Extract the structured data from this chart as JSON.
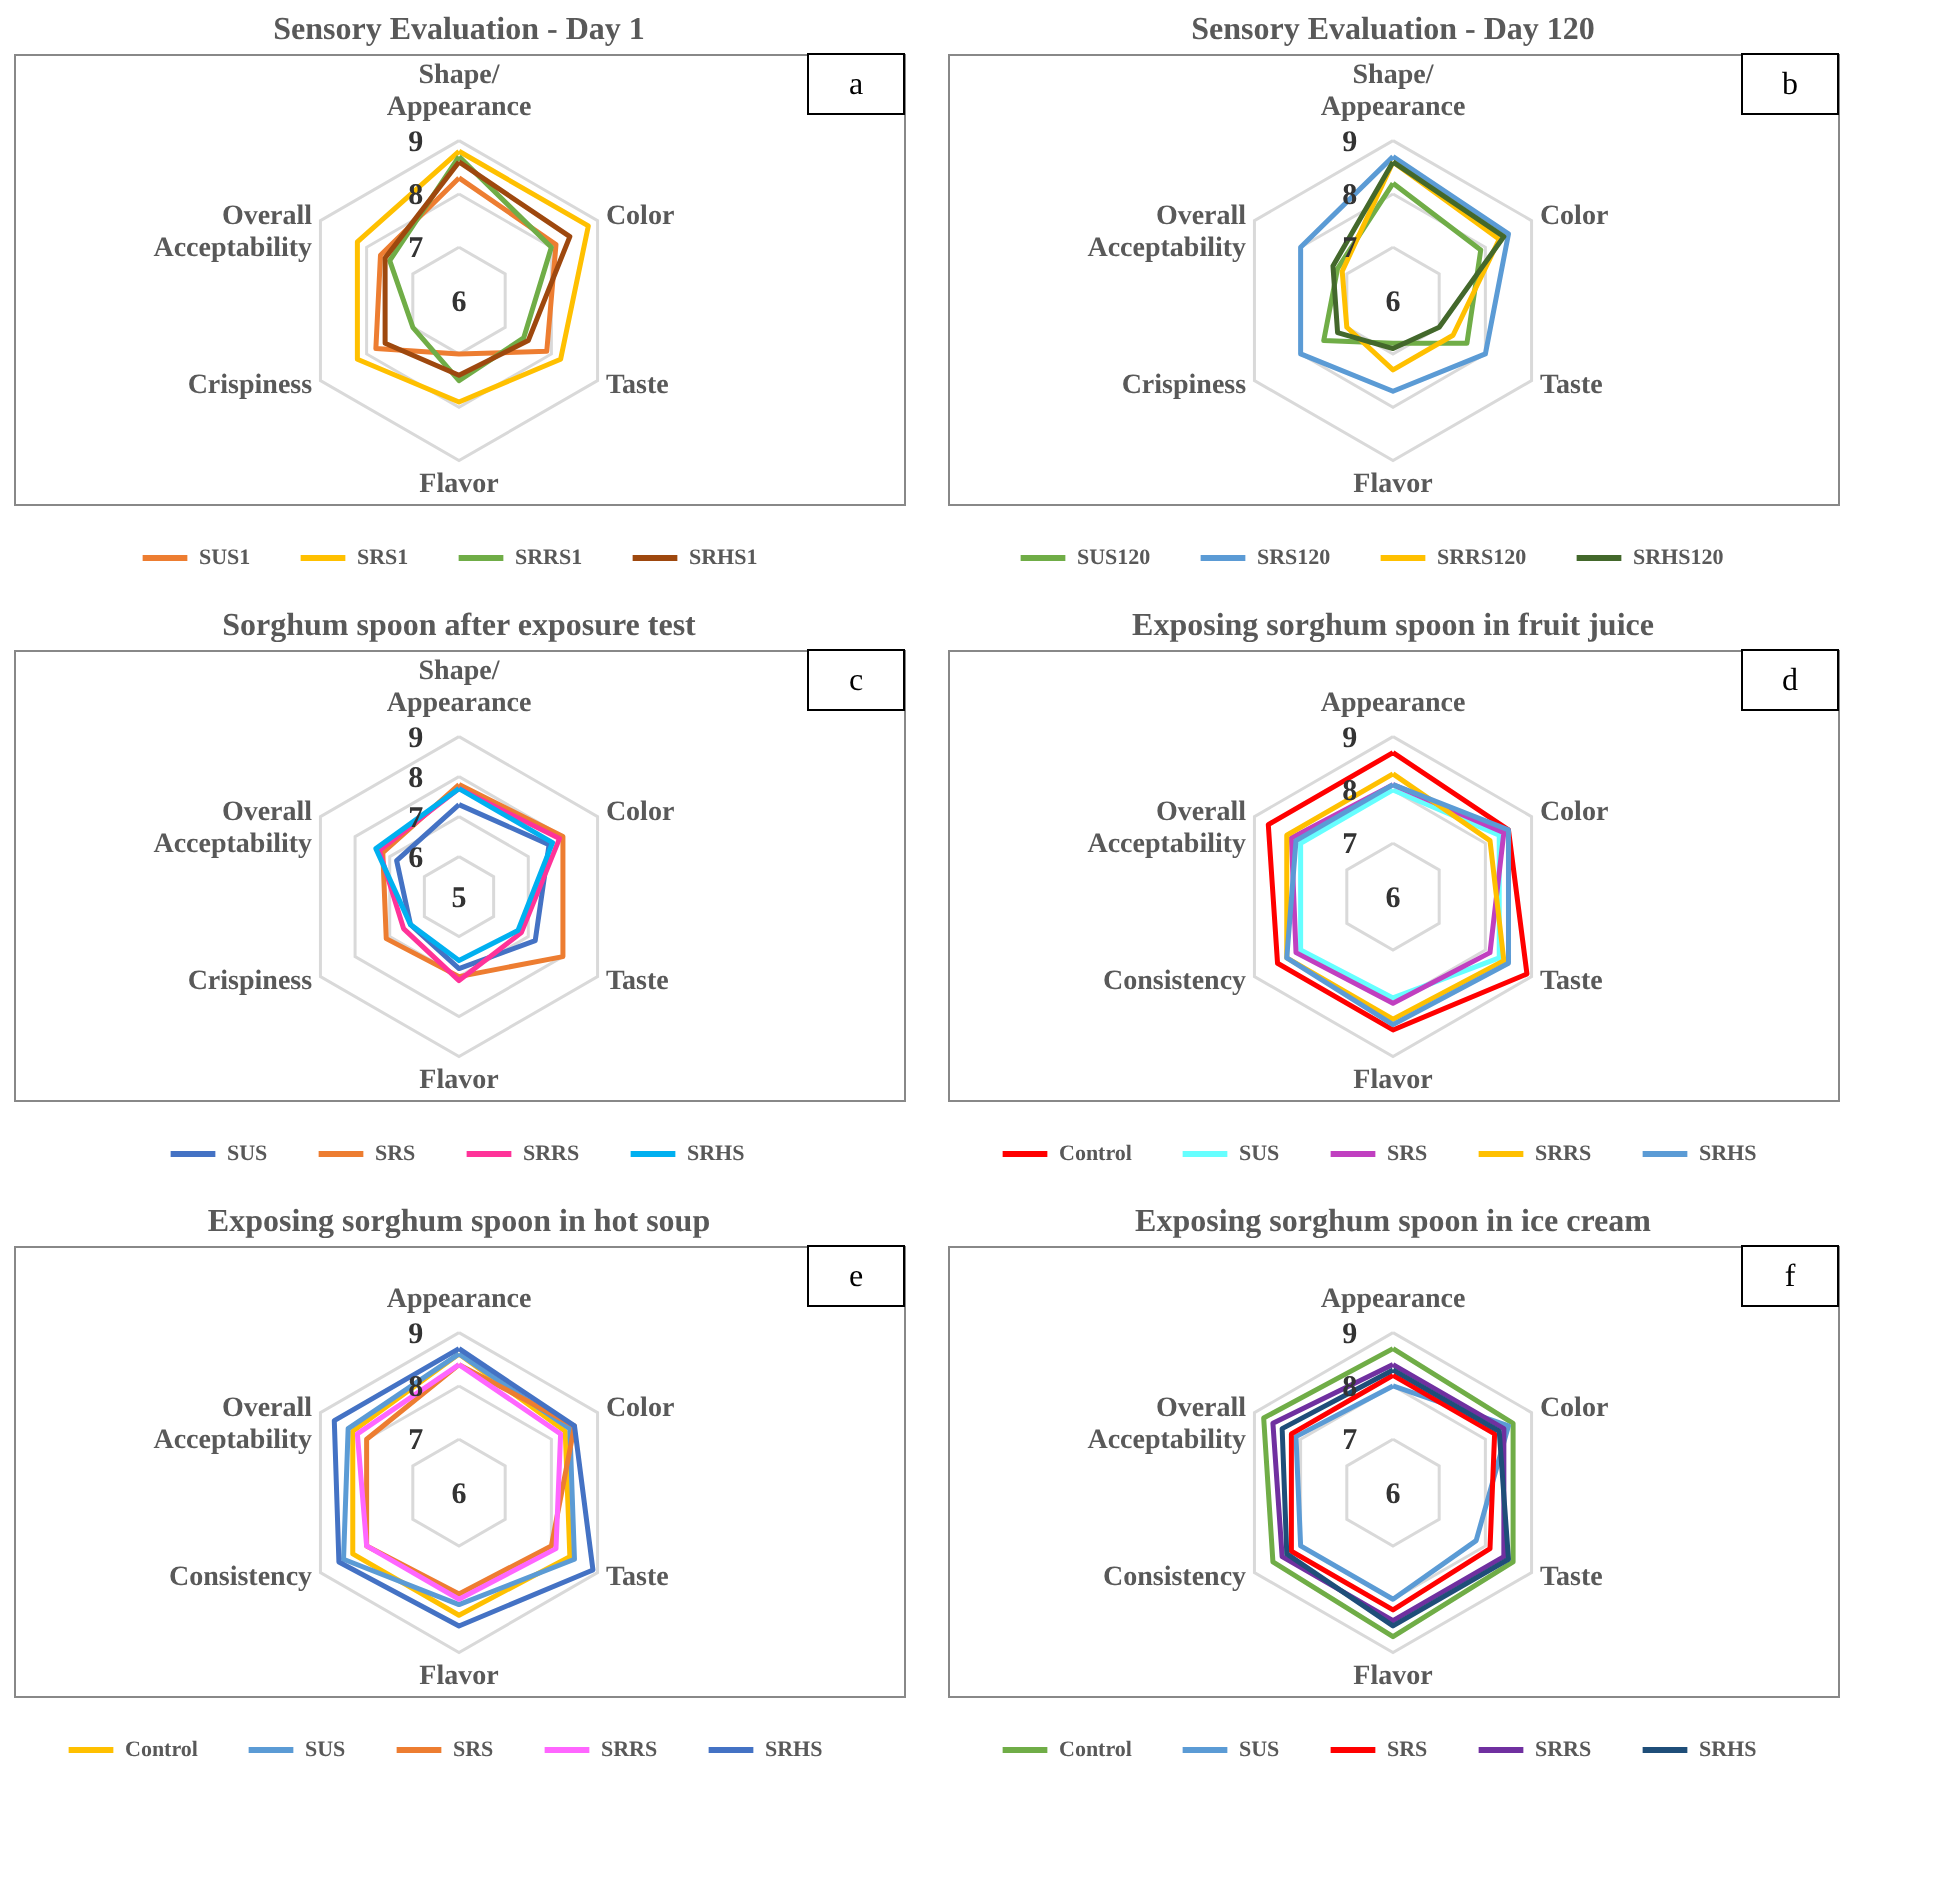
{
  "chart_data": [
    {
      "type": "radar",
      "title": "Sensory Evaluation - Day 1",
      "annotations": [
        "a"
      ],
      "categories": [
        "Shape/ Appearance",
        "Color",
        "Taste",
        "Flavor",
        "Crispiness",
        "Overall Acceptability"
      ],
      "ylim": [
        6,
        9
      ],
      "yticks": [
        6,
        7,
        8,
        9
      ],
      "grid": true,
      "legend": "bottom",
      "series": [
        {
          "name": "SUS1",
          "color": "#ed7d31",
          "values": [
            8.3,
            8.1,
            7.9,
            7.0,
            7.8,
            7.7
          ]
        },
        {
          "name": "SRS1",
          "color": "#ffc000",
          "values": [
            8.8,
            8.8,
            8.2,
            7.9,
            8.2,
            8.2
          ]
        },
        {
          "name": "SRRS1",
          "color": "#70ad47",
          "values": [
            8.7,
            8.0,
            7.4,
            7.5,
            7.0,
            7.5
          ]
        },
        {
          "name": "SRHS1",
          "color": "#9e480e",
          "values": [
            8.6,
            8.4,
            7.5,
            7.4,
            7.6,
            7.6
          ]
        }
      ]
    },
    {
      "type": "radar",
      "title": "Sensory Evaluation - Day 120",
      "annotations": [
        "b"
      ],
      "categories": [
        "Shape/ Appearance",
        "Color",
        "Taste",
        "Flavor",
        "Crispiness",
        "Overall Acceptability"
      ],
      "ylim": [
        6,
        9
      ],
      "yticks": [
        6,
        7,
        8,
        9
      ],
      "grid": true,
      "legend": "bottom",
      "series": [
        {
          "name": "SUS120",
          "color": "#70ad47",
          "values": [
            8.2,
            7.9,
            7.6,
            6.8,
            7.5,
            7.2
          ]
        },
        {
          "name": "SRS120",
          "color": "#5b9bd5",
          "values": [
            8.7,
            8.5,
            8.0,
            7.7,
            8.0,
            8.0
          ]
        },
        {
          "name": "SRRS120",
          "color": "#ffc000",
          "values": [
            8.6,
            8.3,
            7.3,
            7.3,
            7.0,
            7.1
          ]
        },
        {
          "name": "SRHS120",
          "color": "#43682b",
          "values": [
            8.6,
            8.4,
            7.0,
            6.9,
            7.2,
            7.3
          ]
        }
      ]
    },
    {
      "type": "radar",
      "title": "Sorghum spoon after exposure test",
      "annotations": [
        "c"
      ],
      "categories": [
        "Shape/ Appearance",
        "Color",
        "Taste",
        "Flavor",
        "Crispiness",
        "Overall Acceptability"
      ],
      "ylim": [
        5,
        9
      ],
      "yticks": [
        5,
        6,
        7,
        8,
        9
      ],
      "grid": true,
      "legend": "bottom",
      "series": [
        {
          "name": "SUS",
          "color": "#4472c4",
          "values": [
            7.3,
            7.6,
            7.2,
            6.8,
            6.4,
            6.8
          ]
        },
        {
          "name": "SRS",
          "color": "#ed7d31",
          "values": [
            7.8,
            8.0,
            8.0,
            7.0,
            7.1,
            7.2
          ]
        },
        {
          "name": "SRRS",
          "color": "#ff3399",
          "values": [
            7.7,
            7.9,
            6.8,
            7.1,
            6.6,
            7.3
          ]
        },
        {
          "name": "SRHS",
          "color": "#00b0f0",
          "values": [
            7.7,
            7.7,
            6.7,
            6.6,
            6.4,
            7.4
          ]
        }
      ]
    },
    {
      "type": "radar",
      "title": "Exposing sorghum spoon in fruit juice",
      "annotations": [
        "d"
      ],
      "categories": [
        "Appearance",
        "Color",
        "Taste",
        "Flavor",
        "Consistency",
        "Overall Acceptability"
      ],
      "ylim": [
        6,
        9
      ],
      "yticks": [
        6,
        7,
        8,
        9
      ],
      "grid": true,
      "legend": "bottom",
      "series": [
        {
          "name": "Control",
          "color": "#ff0000",
          "values": [
            8.7,
            8.5,
            8.9,
            8.5,
            8.5,
            8.7
          ]
        },
        {
          "name": "SUS",
          "color": "#66ffff",
          "values": [
            8.0,
            8.3,
            8.3,
            7.9,
            8.0,
            8.0
          ]
        },
        {
          "name": "SRS",
          "color": "#c040c0",
          "values": [
            8.1,
            8.4,
            8.1,
            8.0,
            8.1,
            8.2
          ]
        },
        {
          "name": "SRRS",
          "color": "#ffc000",
          "values": [
            8.3,
            8.1,
            8.4,
            8.3,
            8.3,
            8.3
          ]
        },
        {
          "name": "SRHS",
          "color": "#5b9bd5",
          "values": [
            8.1,
            8.5,
            8.5,
            8.4,
            8.3,
            8.1
          ]
        }
      ]
    },
    {
      "type": "radar",
      "title": "Exposing sorghum spoon in hot soup",
      "annotations": [
        "e"
      ],
      "categories": [
        "Appearance",
        "Color",
        "Taste",
        "Flavor",
        "Consistency",
        "Overall Acceptability"
      ],
      "ylim": [
        6,
        9
      ],
      "yticks": [
        6,
        7,
        8,
        9
      ],
      "grid": true,
      "legend": "bottom",
      "series": [
        {
          "name": "Control",
          "color": "#ffc000",
          "values": [
            8.6,
            8.3,
            8.4,
            8.3,
            8.3,
            8.3
          ]
        },
        {
          "name": "SUS",
          "color": "#5b9bd5",
          "values": [
            8.6,
            8.4,
            8.5,
            8.1,
            8.5,
            8.4
          ]
        },
        {
          "name": "SRS",
          "color": "#ed7d31",
          "values": [
            8.4,
            8.5,
            8.0,
            7.9,
            8.0,
            8.0
          ]
        },
        {
          "name": "SRRS",
          "color": "#ff66ff",
          "values": [
            8.4,
            8.2,
            8.1,
            8.0,
            8.0,
            8.2
          ]
        },
        {
          "name": "SRHS",
          "color": "#4472c4",
          "values": [
            8.7,
            8.5,
            8.9,
            8.5,
            8.6,
            8.7
          ]
        }
      ]
    },
    {
      "type": "radar",
      "title": "Exposing sorghum spoon in ice cream",
      "annotations": [
        "f"
      ],
      "categories": [
        "Appearance",
        "Color",
        "Taste",
        "Flavor",
        "Consistency",
        "Overall Acceptability"
      ],
      "ylim": [
        6,
        9
      ],
      "yticks": [
        6,
        7,
        8,
        9
      ],
      "grid": true,
      "legend": "bottom",
      "series": [
        {
          "name": "Control",
          "color": "#70ad47",
          "values": [
            8.7,
            8.6,
            8.6,
            8.7,
            8.6,
            8.8
          ]
        },
        {
          "name": "SUS",
          "color": "#5b9bd5",
          "values": [
            8.0,
            8.5,
            7.8,
            8.0,
            8.0,
            8.1
          ]
        },
        {
          "name": "SRS",
          "color": "#ff0000",
          "values": [
            8.2,
            8.2,
            8.1,
            8.2,
            8.2,
            8.2
          ]
        },
        {
          "name": "SRRS",
          "color": "#7030a0",
          "values": [
            8.4,
            8.4,
            8.4,
            8.4,
            8.4,
            8.6
          ]
        },
        {
          "name": "SRHS",
          "color": "#1f4e79",
          "values": [
            8.3,
            8.3,
            8.5,
            8.5,
            8.3,
            8.4
          ]
        }
      ]
    }
  ]
}
